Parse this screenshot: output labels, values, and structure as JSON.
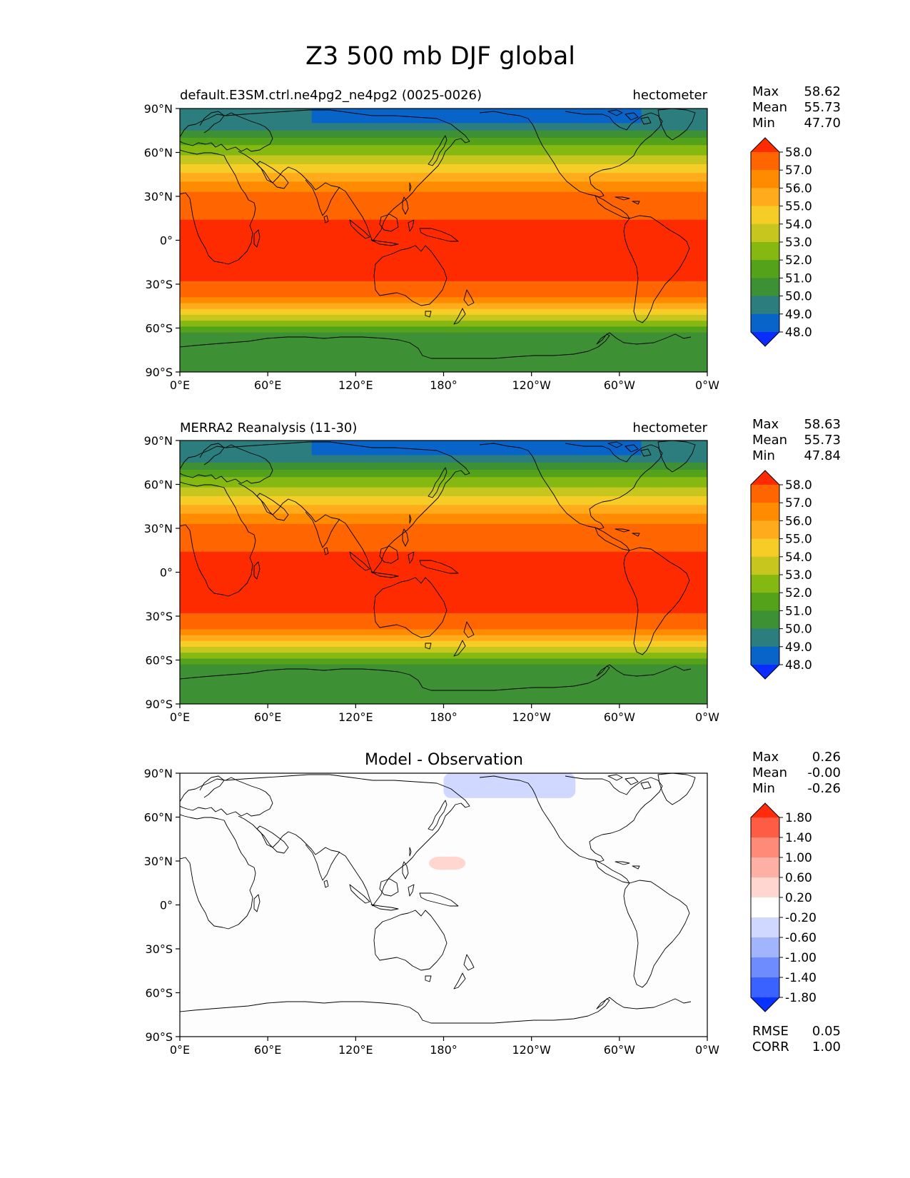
{
  "figure_title": "Z3 500 mb DJF global",
  "chart_data": [
    {
      "type": "heatmap",
      "panel": "model",
      "title_left": "default.E3SM.ctrl.ne4pg2_ne4pg2 (0025-0026)",
      "title_right": "hectometer",
      "x_ticks": [
        "0°E",
        "60°E",
        "120°E",
        "180°",
        "120°W",
        "60°W",
        "0°W"
      ],
      "y_ticks": [
        "90°N",
        "60°N",
        "30°N",
        "0°",
        "30°S",
        "60°S",
        "90°S"
      ],
      "xlim": [
        0,
        360
      ],
      "ylim": [
        -90,
        90
      ],
      "stats": {
        "Max": "58.62",
        "Mean": "55.73",
        "Min": "47.70"
      },
      "stat_labels": {
        "max": "Max",
        "mean": "Mean",
        "min": "Min"
      },
      "colorbar": {
        "labels": [
          "58.0",
          "57.0",
          "56.0",
          "55.0",
          "54.0",
          "53.0",
          "52.0",
          "51.0",
          "50.0",
          "49.0",
          "48.0"
        ],
        "colors_top_to_bottom": [
          "#ff2b00",
          "#ff6500",
          "#ff8c00",
          "#ffab1c",
          "#f6cc26",
          "#c6c61e",
          "#86b812",
          "#54a21a",
          "#3e9034",
          "#2c7e7e",
          "#0864c8",
          "#0a2cff"
        ]
      },
      "bands_n_to_s": [
        {
          "lat_to": 75,
          "value": 49
        },
        {
          "lat_to": 70,
          "value": 50
        },
        {
          "lat_to": 65,
          "value": 51
        },
        {
          "lat_to": 58,
          "value": 52
        },
        {
          "lat_to": 52,
          "value": 53
        },
        {
          "lat_to": 46,
          "value": 54
        },
        {
          "lat_to": 40,
          "value": 55
        },
        {
          "lat_to": 33,
          "value": 56
        },
        {
          "lat_to": 26,
          "value": 57
        },
        {
          "lat_to": 14,
          "value": 57.5
        },
        {
          "lat_to": -28,
          "value": 58
        },
        {
          "lat_to": -35,
          "value": 57.5
        },
        {
          "lat_to": -39,
          "value": 57
        },
        {
          "lat_to": -43,
          "value": 56
        },
        {
          "lat_to": -47,
          "value": 55
        },
        {
          "lat_to": -51,
          "value": 54
        },
        {
          "lat_to": -55,
          "value": 53
        },
        {
          "lat_to": -59,
          "value": 52
        },
        {
          "lat_to": -63,
          "value": 51
        },
        {
          "lat_to": -90,
          "value": 50
        }
      ]
    },
    {
      "type": "heatmap",
      "panel": "observation",
      "title_left": "MERRA2 Reanalysis (11-30)",
      "title_right": "hectometer",
      "x_ticks": [
        "0°E",
        "60°E",
        "120°E",
        "180°",
        "120°W",
        "60°W",
        "0°W"
      ],
      "y_ticks": [
        "90°N",
        "60°N",
        "30°N",
        "0°",
        "30°S",
        "60°S",
        "90°S"
      ],
      "xlim": [
        0,
        360
      ],
      "ylim": [
        -90,
        90
      ],
      "stats": {
        "Max": "58.63",
        "Mean": "55.73",
        "Min": "47.84"
      },
      "stat_labels": {
        "max": "Max",
        "mean": "Mean",
        "min": "Min"
      },
      "colorbar": {
        "labels": [
          "58.0",
          "57.0",
          "56.0",
          "55.0",
          "54.0",
          "53.0",
          "52.0",
          "51.0",
          "50.0",
          "49.0",
          "48.0"
        ],
        "colors_top_to_bottom": [
          "#ff2b00",
          "#ff6500",
          "#ff8c00",
          "#ffab1c",
          "#f6cc26",
          "#c6c61e",
          "#86b812",
          "#54a21a",
          "#3e9034",
          "#2c7e7e",
          "#0864c8",
          "#0a2cff"
        ]
      },
      "bands_n_to_s": [
        {
          "lat_to": 75,
          "value": 49
        },
        {
          "lat_to": 70,
          "value": 50
        },
        {
          "lat_to": 65,
          "value": 51
        },
        {
          "lat_to": 58,
          "value": 52
        },
        {
          "lat_to": 52,
          "value": 53
        },
        {
          "lat_to": 46,
          "value": 54
        },
        {
          "lat_to": 40,
          "value": 55
        },
        {
          "lat_to": 33,
          "value": 56
        },
        {
          "lat_to": 26,
          "value": 57
        },
        {
          "lat_to": 14,
          "value": 57.5
        },
        {
          "lat_to": -28,
          "value": 58
        },
        {
          "lat_to": -35,
          "value": 57.5
        },
        {
          "lat_to": -39,
          "value": 57
        },
        {
          "lat_to": -43,
          "value": 56
        },
        {
          "lat_to": -47,
          "value": 55
        },
        {
          "lat_to": -51,
          "value": 54
        },
        {
          "lat_to": -55,
          "value": 53
        },
        {
          "lat_to": -59,
          "value": 52
        },
        {
          "lat_to": -63,
          "value": 51
        },
        {
          "lat_to": -90,
          "value": 50
        }
      ]
    },
    {
      "type": "heatmap",
      "panel": "difference",
      "title_center": "Model - Observation",
      "x_ticks": [
        "0°E",
        "60°E",
        "120°E",
        "180°",
        "120°W",
        "60°W",
        "0°W"
      ],
      "y_ticks": [
        "90°N",
        "60°N",
        "30°N",
        "0°",
        "30°S",
        "60°S",
        "90°S"
      ],
      "xlim": [
        0,
        360
      ],
      "ylim": [
        -90,
        90
      ],
      "stats": {
        "Max": "0.26",
        "Mean": "-0.00",
        "Min": "-0.26"
      },
      "stat_labels": {
        "max": "Max",
        "mean": "Mean",
        "min": "Min"
      },
      "metrics": {
        "RMSE": "0.05",
        "CORR": "1.00"
      },
      "metric_labels": {
        "rmse": "RMSE",
        "corr": "CORR"
      },
      "colorbar": {
        "labels": [
          "1.80",
          "1.40",
          "1.00",
          "0.60",
          "0.20",
          "-0.20",
          "-0.60",
          "-1.00",
          "-1.40",
          "-1.80"
        ],
        "colors_top_to_bottom": [
          "#ff2b0a",
          "#ff5c45",
          "#ff8a78",
          "#ffb0a4",
          "#ffd7d0",
          "#ffffff",
          "#d0d8ff",
          "#a2b4fb",
          "#6f8cff",
          "#3a62ff",
          "#0a32ff"
        ]
      },
      "anomalies": [
        {
          "kind": "negative",
          "value": -0.22,
          "lon_range": [
            180,
            270
          ],
          "lat_range": [
            73,
            90
          ]
        },
        {
          "kind": "positive",
          "value": 0.24,
          "lon_range": [
            170,
            195
          ],
          "lat_range": [
            24,
            33
          ]
        }
      ]
    }
  ]
}
